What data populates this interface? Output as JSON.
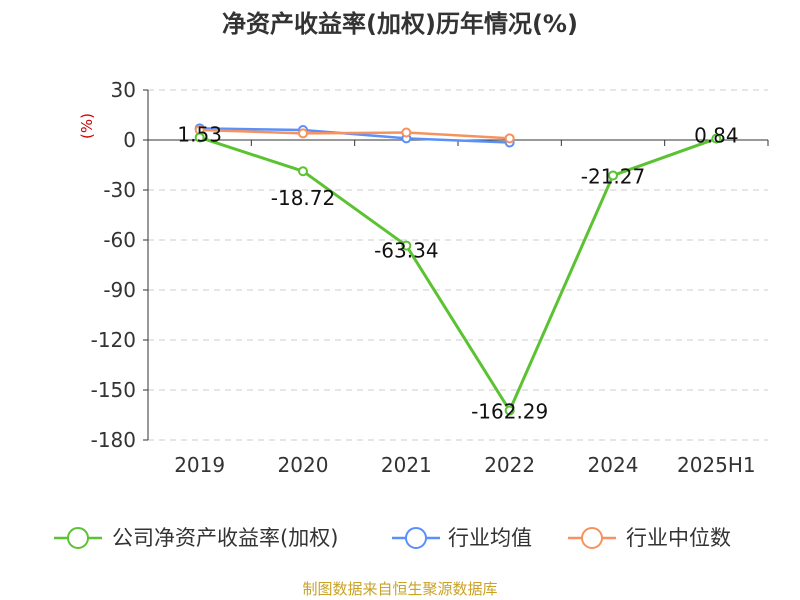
{
  "chart_data": {
    "type": "line",
    "title": "净资产收益率(加权)历年情况(%)",
    "unit_label": "(%)",
    "categories": [
      "2019",
      "2020",
      "2021",
      "2022",
      "2024",
      "2025H1"
    ],
    "ylim": [
      -180,
      30
    ],
    "yticks": [
      30,
      0,
      -30,
      -60,
      -90,
      -120,
      -150,
      -180
    ],
    "grid": true,
    "legend_position": "bottom",
    "series": [
      {
        "name": "公司净资产收益率(加权)",
        "color": "#5bc232",
        "values": [
          1.53,
          -18.72,
          -63.34,
          -162.29,
          -21.27,
          0.84
        ],
        "labels": [
          "1.53",
          "-18.72",
          "-63.34",
          "-162.29",
          "-21.27",
          "0.84"
        ]
      },
      {
        "name": "行业均值",
        "color": "#5b8ff9",
        "values": [
          7.0,
          6.0,
          1.0,
          -1.5,
          null,
          null
        ]
      },
      {
        "name": "行业中位数",
        "color": "#f4935f",
        "values": [
          6.0,
          4.0,
          4.5,
          1.0,
          null,
          null
        ]
      }
    ],
    "source": "制图数据来自恒生聚源数据库"
  }
}
